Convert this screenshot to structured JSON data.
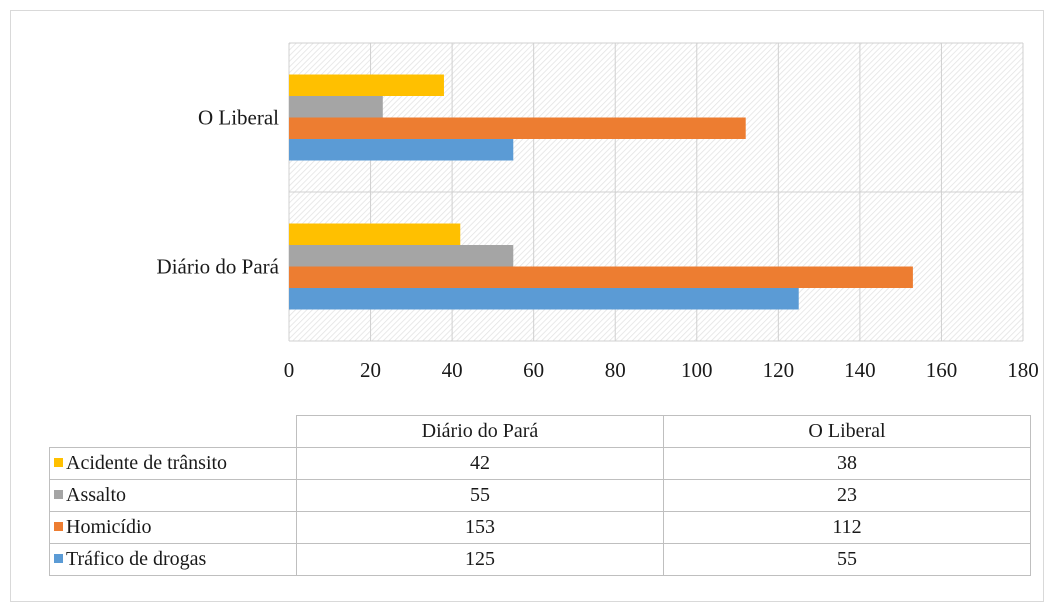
{
  "chart_data": {
    "type": "bar",
    "orientation": "horizontal",
    "categories": [
      "Diário do Pará",
      "O Liberal"
    ],
    "series": [
      {
        "name": "Tráfico de drogas",
        "color": "#5b9bd5",
        "values": [
          125,
          55
        ]
      },
      {
        "name": "Homicídio",
        "color": "#ed7d31",
        "values": [
          153,
          112
        ]
      },
      {
        "name": "Assalto",
        "color": "#a5a5a5",
        "values": [
          55,
          23
        ]
      },
      {
        "name": "Acidente de trânsito",
        "color": "#ffc000",
        "values": [
          42,
          38
        ]
      }
    ],
    "xlim": [
      0,
      180
    ],
    "xticks": [
      "0",
      "20",
      "40",
      "60",
      "80",
      "100",
      "120",
      "140",
      "160",
      "180"
    ],
    "grid": true,
    "legend": "data-table-below"
  },
  "table": {
    "columns": [
      "Diário do Pará",
      "O Liberal"
    ],
    "rows": [
      {
        "label": "Acidente de trânsito",
        "color": "#ffc000",
        "values": [
          "42",
          "38"
        ]
      },
      {
        "label": "Assalto",
        "color": "#a5a5a5",
        "values": [
          "55",
          "23"
        ]
      },
      {
        "label": "Homicídio",
        "color": "#ed7d31",
        "values": [
          "153",
          "112"
        ]
      },
      {
        "label": "Tráfico de drogas",
        "color": "#5b9bd5",
        "values": [
          "125",
          "55"
        ]
      }
    ]
  }
}
